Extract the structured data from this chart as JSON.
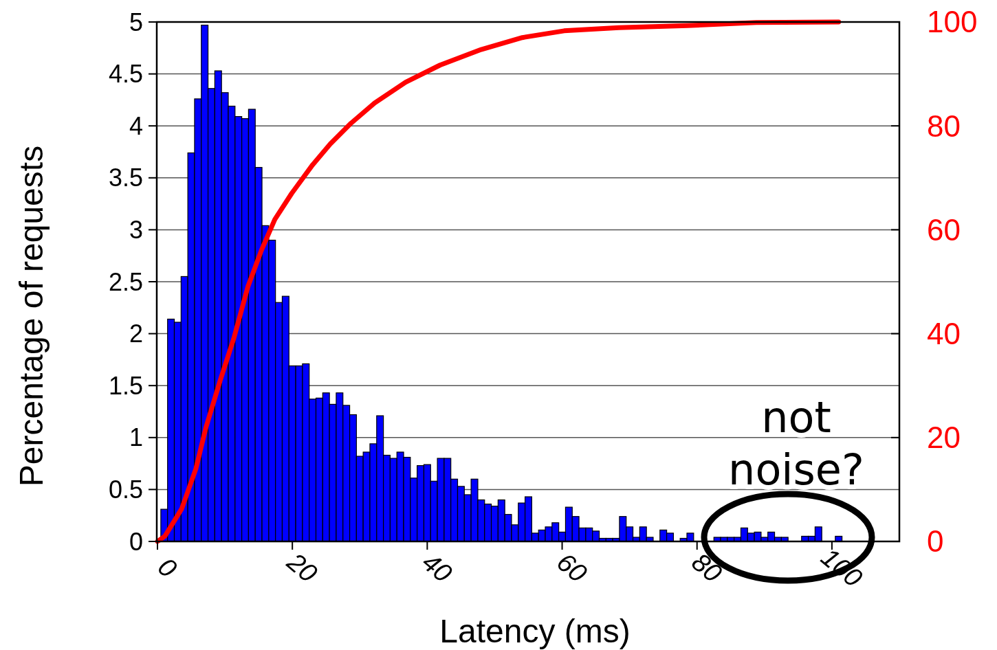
{
  "chart_data": {
    "type": "histogram",
    "xlabel": "Latency (ms)",
    "ylabel": "Percentage of requests",
    "xlim": [
      0,
      110
    ],
    "xticks": [
      0,
      20,
      40,
      60,
      80,
      100
    ],
    "ylim": [
      0,
      5
    ],
    "yticks": [
      0,
      0.5,
      1,
      1.5,
      2,
      2.5,
      3,
      3.5,
      4,
      4.5,
      5
    ],
    "y2lim": [
      0,
      100
    ],
    "y2ticks": [
      0,
      20,
      40,
      60,
      80,
      100
    ],
    "grid": "y",
    "annotations": [
      "not noise?"
    ],
    "series": [
      {
        "color": "#0000ff",
        "bins": [
          0.5,
          1.5,
          2.5,
          3.5,
          4.5,
          5.5,
          6.5,
          7.5,
          8.5,
          9.5,
          10.5,
          11.5,
          12.5,
          13.5,
          14.5,
          15.5,
          16.5,
          17.5,
          18.5,
          19.5,
          20.5,
          21.5,
          22.5,
          23.5,
          24.5,
          25.5,
          26.5,
          27.5,
          28.5,
          29.5,
          30.5,
          31.5,
          32.5,
          33.5,
          34.5,
          35.5,
          36.5,
          37.5,
          38.5,
          39.5,
          40.5,
          41.5,
          42.5,
          43.5,
          44.5,
          45.5,
          46.5,
          47.5,
          48.5,
          49.5,
          50.5,
          51.5,
          52.5,
          53.5,
          54.5,
          55.5,
          56.5,
          57.5,
          58.5,
          59.5,
          60.5,
          61.5,
          62.5,
          63.5,
          64.5,
          65.5,
          66.5,
          67.5,
          68.5,
          69.5,
          70.5,
          71.5,
          72.5,
          73.5,
          74.5,
          75.5,
          76.5,
          77.5,
          78.5,
          79.5,
          80.5,
          81.5,
          82.5,
          83.5,
          84.5,
          85.5,
          86.5,
          87.5,
          88.5,
          89.5,
          90.5,
          91.5,
          92.5,
          93.5,
          94.5,
          95.5,
          96.5,
          97.5,
          98.5,
          99.5,
          100.5,
          101.5
        ],
        "values": [
          0.31,
          2.14,
          2.11,
          2.55,
          3.74,
          4.26,
          4.97,
          4.36,
          4.53,
          4.32,
          4.19,
          4.09,
          4.07,
          4.16,
          3.6,
          3.04,
          2.9,
          2.3,
          2.36,
          1.69,
          1.69,
          1.71,
          1.37,
          1.38,
          1.43,
          1.32,
          1.43,
          1.31,
          1.22,
          0.82,
          0.86,
          0.94,
          1.21,
          0.83,
          0.8,
          0.86,
          0.81,
          0.61,
          0.73,
          0.74,
          0.58,
          0.8,
          0.8,
          0.6,
          0.53,
          0.45,
          0.6,
          0.4,
          0.36,
          0.34,
          0.4,
          0.26,
          0.16,
          0.37,
          0.43,
          0.08,
          0.11,
          0.14,
          0.18,
          0.09,
          0.33,
          0.24,
          0.13,
          0.13,
          0.1,
          0.03,
          0.03,
          0.03,
          0.24,
          0.14,
          0.04,
          0.14,
          0.04,
          0,
          0.11,
          0.08,
          0,
          0.03,
          0.08,
          0,
          0,
          0,
          0.04,
          0.04,
          0.04,
          0.04,
          0.13,
          0.08,
          0.09,
          0.04,
          0.09,
          0.04,
          0.04,
          0,
          0,
          0.05,
          0.05,
          0.14,
          0,
          0,
          0.05
        ]
      },
      {
        "type": "line",
        "axis": "y2",
        "color": "#ff0000",
        "x": [
          0,
          1.1,
          3.6,
          5.7,
          7.2,
          9.3,
          11.3,
          13.4,
          15.4,
          17.4,
          19.9,
          23,
          25.6,
          28.6,
          32.2,
          36.8,
          41.9,
          48,
          54.1,
          60.3,
          68.4,
          78.6,
          88.8,
          101
        ],
        "values": [
          0,
          1,
          6.3,
          14,
          22,
          31,
          39,
          49,
          56,
          62,
          67,
          72.5,
          76.5,
          80.4,
          84.4,
          88.4,
          91.7,
          94.7,
          97,
          98.3,
          98.9,
          99.3,
          99.9,
          100
        ]
      }
    ]
  }
}
